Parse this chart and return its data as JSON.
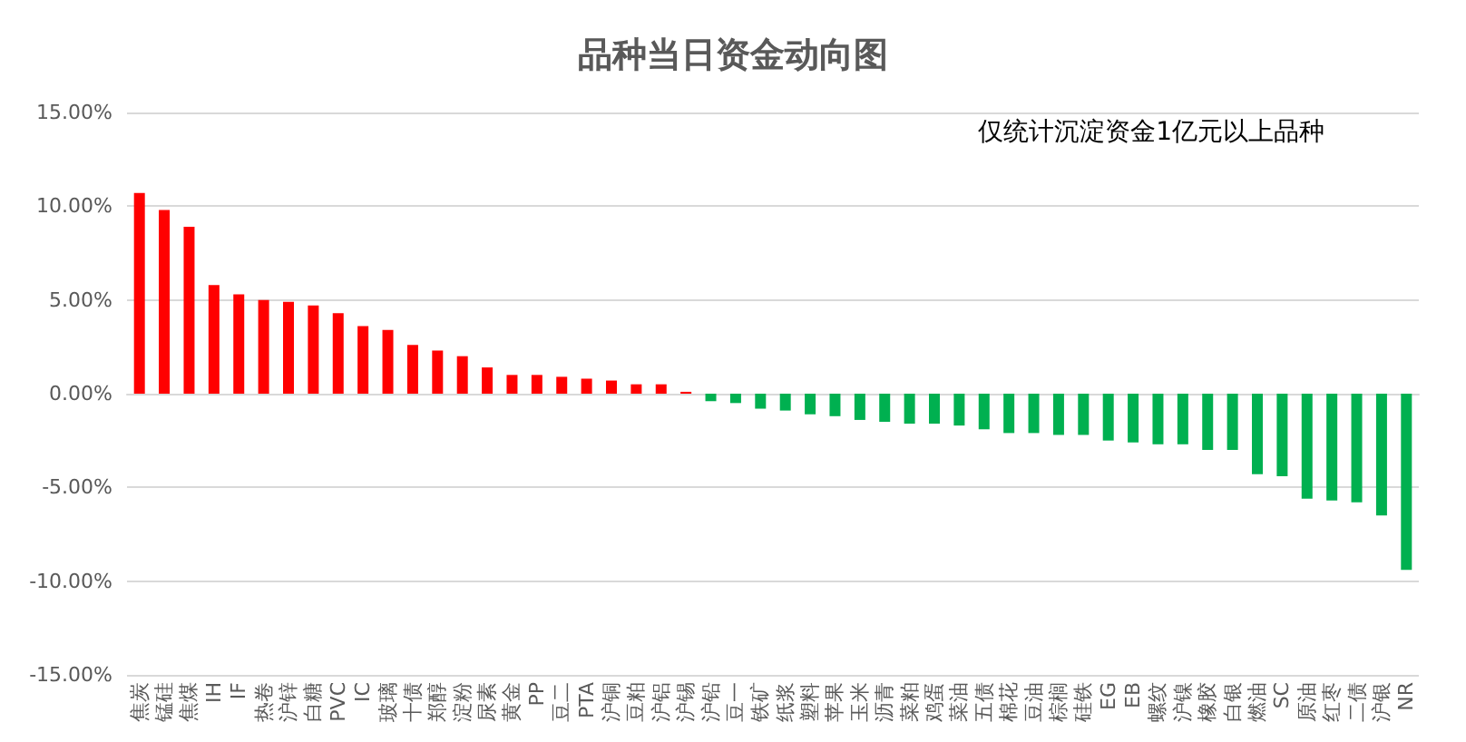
{
  "chart_data": {
    "type": "bar",
    "title": "品种当日资金动向图",
    "annotations": [
      "仅统计沉淀资金1亿元以上品种"
    ],
    "categories": [
      "焦炭",
      "锰硅",
      "焦煤",
      "IH",
      "IF",
      "热卷",
      "沪锌",
      "白糖",
      "PVC",
      "IC",
      "玻璃",
      "十债",
      "郑醇",
      "淀粉",
      "尿素",
      "黄金",
      "PP",
      "豆二",
      "PTA",
      "沪铜",
      "豆粕",
      "沪铝",
      "沪锡",
      "沪铅",
      "豆一",
      "铁矿",
      "纸浆",
      "塑料",
      "苹果",
      "玉米",
      "沥青",
      "菜粕",
      "鸡蛋",
      "菜油",
      "五债",
      "棉花",
      "豆油",
      "棕榈",
      "硅铁",
      "EG",
      "EB",
      "螺纹",
      "沪镍",
      "橡胶",
      "白银",
      "燃油",
      "SC",
      "原油",
      "红枣",
      "二债",
      "沪银",
      "NR"
    ],
    "values": [
      10.7,
      9.8,
      8.9,
      5.8,
      5.3,
      5.0,
      4.9,
      4.7,
      4.3,
      3.6,
      3.4,
      2.6,
      2.3,
      2.0,
      1.4,
      1.0,
      1.0,
      0.9,
      0.8,
      0.7,
      0.5,
      0.5,
      0.1,
      -0.4,
      -0.5,
      -0.8,
      -0.9,
      -1.1,
      -1.2,
      -1.4,
      -1.5,
      -1.6,
      -1.6,
      -1.7,
      -1.9,
      -2.1,
      -2.1,
      -2.2,
      -2.2,
      -2.5,
      -2.6,
      -2.7,
      -2.7,
      -3.0,
      -3.0,
      -4.3,
      -4.4,
      -5.6,
      -5.7,
      -5.8,
      -6.5,
      -9.4
    ],
    "colors": [
      "#ff0000",
      "#ff0000",
      "#ff0000",
      "#ff0000",
      "#ff0000",
      "#ff0000",
      "#ff0000",
      "#ff0000",
      "#ff0000",
      "#ff0000",
      "#ff0000",
      "#ff0000",
      "#ff0000",
      "#ff0000",
      "#ff0000",
      "#ff0000",
      "#ff0000",
      "#ff0000",
      "#ff0000",
      "#ff0000",
      "#ff0000",
      "#ff0000",
      "#ff0000",
      "#00b050",
      "#00b050",
      "#00b050",
      "#00b050",
      "#00b050",
      "#00b050",
      "#00b050",
      "#00b050",
      "#00b050",
      "#00b050",
      "#00b050",
      "#00b050",
      "#00b050",
      "#00b050",
      "#00b050",
      "#00b050",
      "#00b050",
      "#00b050",
      "#00b050",
      "#00b050",
      "#00b050",
      "#00b050",
      "#00b050",
      "#00b050",
      "#00b050",
      "#00b050",
      "#00b050",
      "#00b050",
      "#00b050"
    ],
    "ylim": [
      -15,
      15
    ],
    "yticks": [
      {
        "value": -15,
        "label": "-15.00%"
      },
      {
        "value": -10,
        "label": "-10.00%"
      },
      {
        "value": -5,
        "label": "-5.00%"
      },
      {
        "value": 0,
        "label": "0.00%"
      },
      {
        "value": 5,
        "label": "5.00%"
      },
      {
        "value": 10,
        "label": "10.00%"
      },
      {
        "value": 15,
        "label": "15.00%"
      }
    ],
    "grid": "y"
  }
}
